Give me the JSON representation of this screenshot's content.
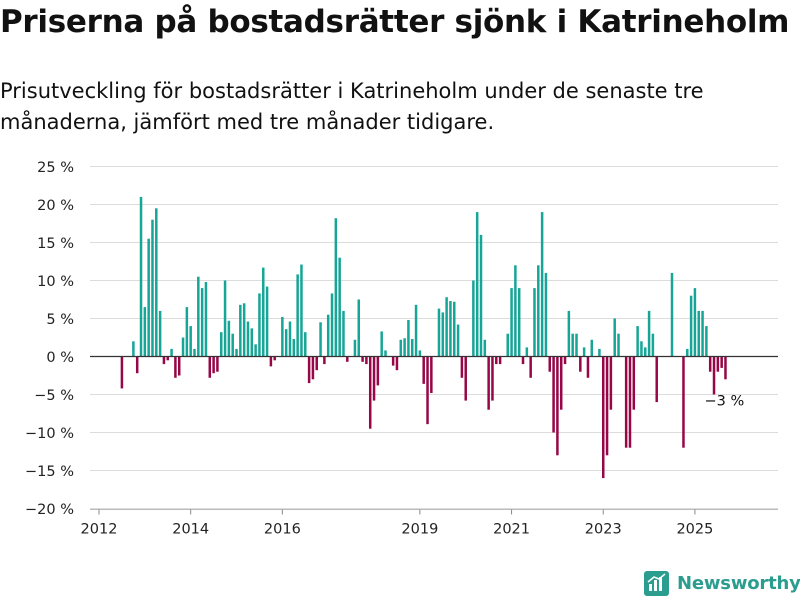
{
  "header": {
    "title": "Priserna på bostadsrätter sjönk i Katrineholm",
    "subtitle": "Prisutveckling för bostadsrätter i Katrineholm under de senaste tre månaderna, jämfört med tre månader tidigare."
  },
  "brand": {
    "name": "Newsworthy",
    "color": "#2a9d8f"
  },
  "chart_data": {
    "type": "bar",
    "x_start_month": "2012-01",
    "x_unit": "month",
    "ylim": [
      -20,
      25
    ],
    "yticks": [
      -20,
      -15,
      -10,
      -5,
      0,
      5,
      10,
      15,
      20,
      25
    ],
    "ytick_labels": [
      "−20 %",
      "−15 %",
      "−10 %",
      "−5 %",
      "0 %",
      "5 %",
      "10 %",
      "15 %",
      "20 %",
      "25 %"
    ],
    "xticks": [
      "2012",
      "2014",
      "2016",
      "2019",
      "2021",
      "2023",
      "2025"
    ],
    "grid": true,
    "colors": {
      "positive": "#16a596",
      "negative": "#970747"
    },
    "annotation": {
      "text": "−3 %",
      "value": -3
    },
    "values": [
      null,
      null,
      null,
      null,
      null,
      null,
      -4.2,
      null,
      null,
      2,
      -2.2,
      21,
      6.5,
      15.5,
      18,
      19.5,
      6,
      -1,
      -0.5,
      1,
      -2.8,
      -2.5,
      2.5,
      6.5,
      4,
      1,
      10.5,
      9,
      9.8,
      -2.8,
      -2.2,
      -2,
      3.2,
      10,
      4.7,
      3,
      1,
      6.8,
      7,
      4.6,
      3.7,
      1.6,
      8.3,
      11.7,
      9.2,
      -1.3,
      -0.5,
      0,
      5.2,
      3.6,
      4.6,
      2.3,
      10.8,
      12.1,
      3.2,
      -3.5,
      -3,
      -1.8,
      4.5,
      -1,
      5.5,
      8.3,
      18.2,
      13,
      6,
      -0.7,
      0,
      2.2,
      7.5,
      -0.7,
      -1,
      -9.5,
      -5.8,
      -3.8,
      3.3,
      0.8,
      0,
      -1.2,
      -1.8,
      2.2,
      2.4,
      4.8,
      2.3,
      6.8,
      0.8,
      -3.6,
      -8.9,
      -4.8,
      0,
      6.3,
      5.8,
      7.8,
      7.3,
      7.2,
      4.2,
      -2.8,
      -5.8,
      0,
      10,
      19,
      16,
      2.2,
      -7,
      -5.8,
      -1,
      -1,
      0,
      3,
      9,
      12,
      9,
      -1,
      1.2,
      -2.8,
      9,
      12,
      19,
      11,
      -2,
      -10,
      -13,
      -7,
      -1,
      6,
      3,
      3,
      -2,
      1.2,
      -2.8,
      2.2,
      0,
      1,
      -16,
      -13,
      -7,
      5,
      3,
      0,
      -12,
      -12,
      -7,
      4,
      2,
      1.2,
      6,
      3,
      -6,
      0,
      0,
      0,
      11,
      0,
      0,
      -12,
      1,
      8,
      9,
      6,
      6,
      4,
      -2,
      -5,
      -2,
      -1.5,
      -3
    ]
  }
}
